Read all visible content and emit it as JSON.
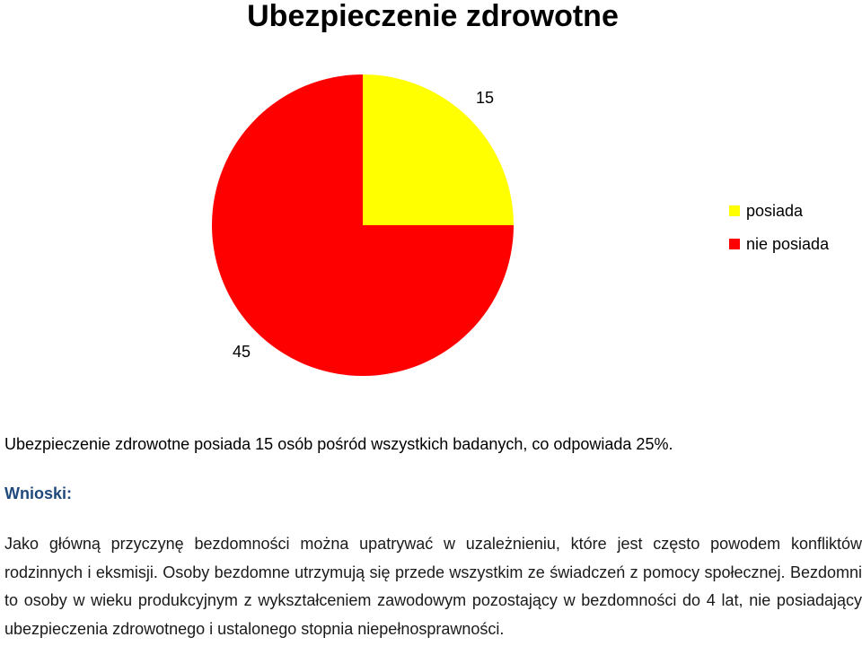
{
  "chart_data": {
    "type": "pie",
    "title": "Ubezpieczenie zdrowotne",
    "categories": [
      "posiada",
      "nie posiada"
    ],
    "values": [
      15,
      45
    ],
    "data_labels": [
      "15",
      "45"
    ],
    "colors": [
      "#ffff00",
      "#ff0000"
    ],
    "legend_position": "right"
  },
  "text": {
    "summary": "Ubezpieczenie zdrowotne posiada 15 osób pośród wszystkich badanych, co odpowiada 25%.",
    "conclusions_heading": "Wnioski:",
    "conclusions_body": "Jako główną przyczynę bezdomności można upatrywać w uzależnieniu, które jest często powodem konfliktów rodzinnych i eksmisji. Osoby bezdomne utrzymują się przede wszystkim ze świadczeń z pomocy społecznej. Bezdomni to osoby w wieku produkcyjnym z wykształceniem zawodowym pozostający w bezdomności do 4 lat, nie posiadający ubezpieczenia zdrowotnego i ustalonego stopnia niepełnosprawności."
  }
}
